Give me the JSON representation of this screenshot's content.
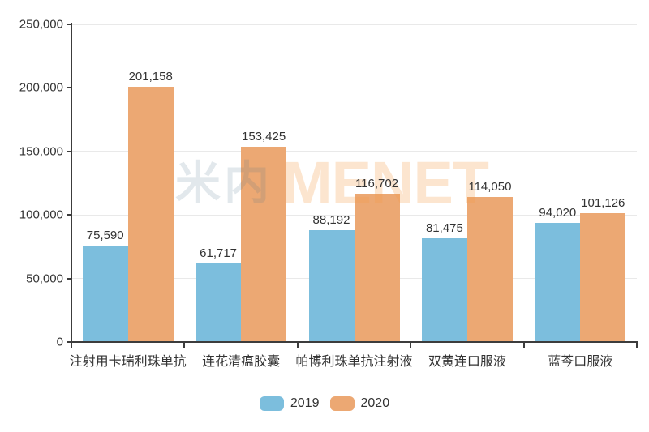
{
  "chart_data": {
    "type": "bar",
    "title": "",
    "xlabel": "",
    "ylabel": "",
    "categories": [
      "注射用卡瑞利珠单抗",
      "连花清瘟胶囊",
      "帕博利珠单抗注射液",
      "双黄连口服液",
      "蓝芩口服液"
    ],
    "series": [
      {
        "name": "2019",
        "color": "#7cbedd",
        "values": [
          75590,
          61717,
          88192,
          81475,
          94020
        ]
      },
      {
        "name": "2020",
        "color": "#eca873",
        "values": [
          201158,
          153425,
          116702,
          114050,
          101126
        ]
      }
    ],
    "value_labels": [
      [
        "75,590",
        "61,717",
        "88,192",
        "81,475",
        "94,020"
      ],
      [
        "201,158",
        "153,425",
        "116,702",
        "114,050",
        "101,126"
      ]
    ],
    "ylim": [
      0,
      250000
    ],
    "ytick_step": 50000,
    "ytick_labels": [
      "0",
      "50,000",
      "100,000",
      "150,000",
      "200,000",
      "250,000"
    ],
    "grid": true,
    "legend_position": "bottom",
    "legend_items": [
      "2019",
      "2020"
    ],
    "watermark": {
      "cn": "米内",
      "en": "MENET"
    },
    "colors": {
      "bar_2019": "#7cbedd",
      "bar_2020": "#eca873",
      "axis": "#3c3c3c",
      "gridline": "#e9e9e9",
      "text": "#333333",
      "watermark_cn": "rgba(77,109,138,0.16)",
      "watermark_en": "rgba(242,153,70,0.26)"
    }
  }
}
